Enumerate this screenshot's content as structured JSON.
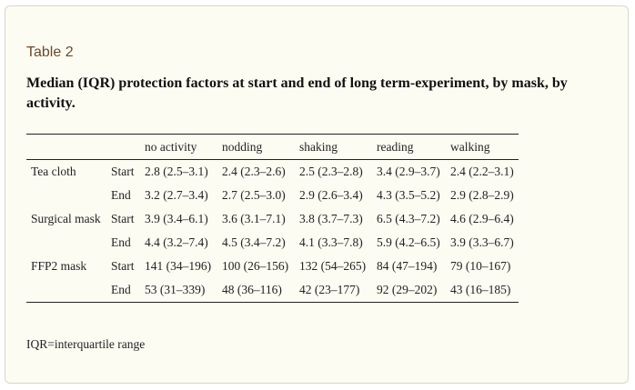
{
  "table_label": "Table 2",
  "caption": "Median (IQR) protection factors at start and end of long term-experiment, by mask, by activity.",
  "columns": [
    "",
    "",
    "no activity",
    "nodding",
    "shaking",
    "reading",
    "walking"
  ],
  "rows": [
    {
      "mask": "Tea cloth",
      "phase": "Start",
      "values": [
        "2.8 (2.5–3.1)",
        "2.4 (2.3–2.6)",
        "2.5 (2.3–2.8)",
        "3.4 (2.9–3.7)",
        "2.4 (2.2–3.1)"
      ]
    },
    {
      "mask": "",
      "phase": "End",
      "values": [
        "3.2 (2.7–3.4)",
        "2.7 (2.5–3.0)",
        "2.9 (2.6–3.4)",
        "4.3 (3.5–5.2)",
        "2.9 (2.8–2.9)"
      ]
    },
    {
      "mask": "Surgical mask",
      "phase": "Start",
      "values": [
        "3.9 (3.4–6.1)",
        "3.6 (3.1–7.1)",
        "3.8 (3.7–7.3)",
        "6.5 (4.3–7.2)",
        "4.6 (2.9–6.4)"
      ]
    },
    {
      "mask": "",
      "phase": "End",
      "values": [
        "4.4 (3.2–7.4)",
        "4.5 (3.4–7.2)",
        "4.1 (3.3–7.8)",
        "5.9 (4.2–6.5)",
        "3.9 (3.3–6.7)"
      ]
    },
    {
      "mask": "FFP2 mask",
      "phase": "Start",
      "values": [
        "141 (34–196)",
        "100 (26–156)",
        "132 (54–265)",
        "84 (47–194)",
        "79 (10–167)"
      ]
    },
    {
      "mask": "",
      "phase": "End",
      "values": [
        "53 (31–339)",
        "48 (36–116)",
        "42 (23–177)",
        "92 (29–202)",
        "43 (16–185)"
      ]
    }
  ],
  "footnote": "IQR=interquartile range"
}
